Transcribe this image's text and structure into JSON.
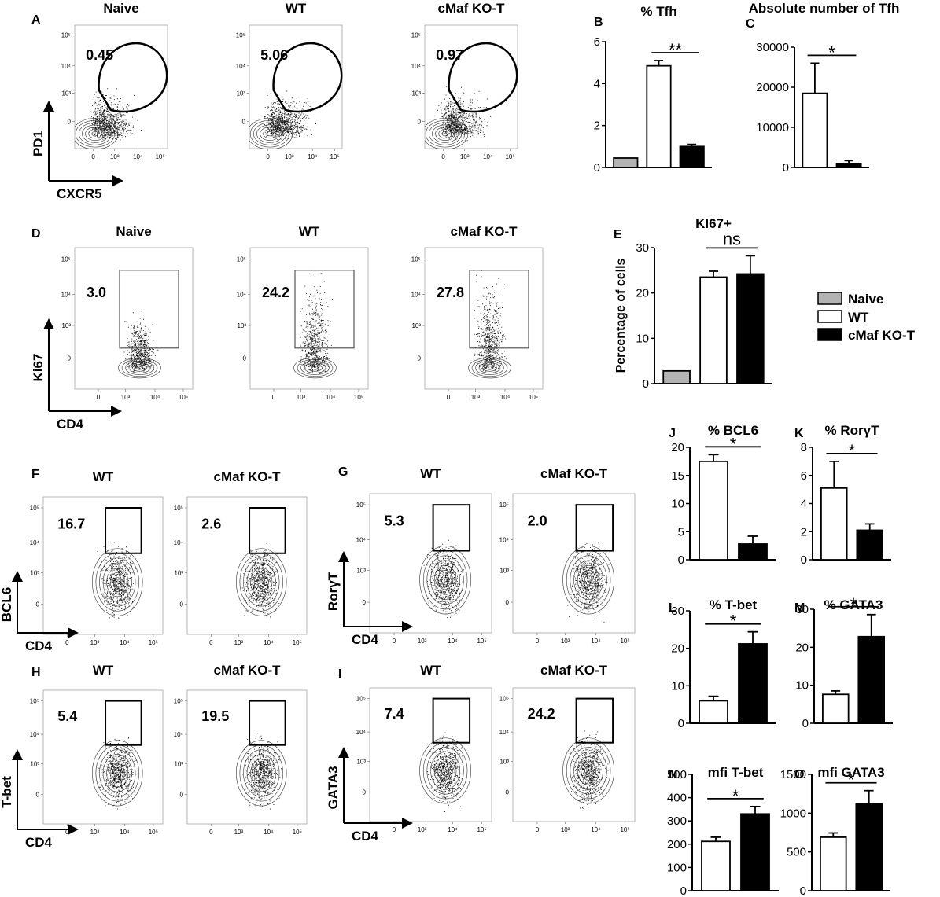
{
  "flow_rows": [
    {
      "id": "A",
      "y_label": "PD1",
      "x_label": "CXCR5",
      "gate": "oval",
      "cloud": "thin",
      "titles": [
        "Naive",
        "WT",
        "cMaf KO-T"
      ],
      "values": [
        "0.45",
        "5.06",
        "0.97"
      ]
    },
    {
      "id": "D",
      "y_label": "Ki67",
      "x_label": "CD4",
      "gate": "tall",
      "titles": [
        "Naive",
        "WT",
        "cMaf KO-T"
      ],
      "values": [
        "3.0",
        "24.2",
        "27.8"
      ]
    },
    {
      "id": "F",
      "y_label": "BCL6",
      "x_label": "CD4",
      "gate": "box",
      "titles": [
        "WT",
        "cMaf KO-T"
      ],
      "values": [
        "16.7",
        "2.6"
      ]
    },
    {
      "id": "G",
      "y_label": "RorγT",
      "x_label": "CD4",
      "gate": "box",
      "titles": [
        "WT",
        "cMaf KO-T"
      ],
      "values": [
        "5.3",
        "2.0"
      ]
    },
    {
      "id": "H",
      "y_label": "T-bet",
      "x_label": "CD4",
      "gate": "box",
      "titles": [
        "WT",
        "cMaf KO-T"
      ],
      "values": [
        "5.4",
        "19.5"
      ]
    },
    {
      "id": "I",
      "y_label": "GATA3",
      "x_label": "CD4",
      "gate": "box",
      "titles": [
        "WT",
        "cMaf KO-T"
      ],
      "values": [
        "7.4",
        "24.2"
      ]
    }
  ],
  "flow_axis_ticks": {
    "x": [
      "0",
      "10³",
      "10⁴",
      "10⁵"
    ],
    "y": [
      "0",
      "10³",
      "10⁴",
      "10⁵"
    ]
  },
  "chart_data": [
    {
      "id": "B",
      "type": "bar",
      "title": "% Tfh",
      "ylabel": "",
      "ylim": [
        0,
        6
      ],
      "yticks": [
        0,
        2,
        4,
        6
      ],
      "categories": [
        "Naive",
        "WT",
        "cMaf KO-T"
      ],
      "values": [
        0.45,
        4.85,
        1.0
      ],
      "errors": [
        0,
        0.25,
        0.1
      ],
      "significance": [
        {
          "between": [
            1,
            2
          ],
          "text": "**"
        }
      ]
    },
    {
      "id": "C",
      "type": "bar",
      "title": "Absolute number of Tfh",
      "ylabel": "",
      "ylim": [
        0,
        30000
      ],
      "yticks": [
        0,
        10000,
        20000,
        30000
      ],
      "categories": [
        "WT",
        "cMaf KO-T"
      ],
      "values": [
        18500,
        1000
      ],
      "errors": [
        7500,
        700
      ],
      "significance": [
        {
          "between": [
            0,
            1
          ],
          "text": "*"
        }
      ]
    },
    {
      "id": "E",
      "type": "bar",
      "title": "KI67+",
      "ylabel": "Percentage of cells",
      "ylim": [
        0,
        30
      ],
      "yticks": [
        0,
        10,
        20,
        30
      ],
      "categories": [
        "Naive",
        "WT",
        "cMaf KO-T"
      ],
      "values": [
        2.8,
        23.5,
        24.2
      ],
      "errors": [
        0,
        1.3,
        4.0
      ],
      "significance": [
        {
          "between": [
            1,
            2
          ],
          "text": "ns"
        }
      ]
    },
    {
      "id": "J",
      "type": "bar",
      "title": "% BCL6",
      "ylabel": "",
      "ylim": [
        0,
        20
      ],
      "yticks": [
        0,
        5,
        10,
        15,
        20
      ],
      "categories": [
        "WT",
        "cMaf KO-T"
      ],
      "values": [
        17.5,
        2.8
      ],
      "errors": [
        1.2,
        1.4
      ],
      "significance": [
        {
          "between": [
            0,
            1
          ],
          "text": "*"
        }
      ]
    },
    {
      "id": "K",
      "type": "bar",
      "title": "% RorγT",
      "ylabel": "",
      "ylim": [
        0,
        8
      ],
      "yticks": [
        0,
        2,
        4,
        6,
        8
      ],
      "categories": [
        "WT",
        "cMaf KO-T"
      ],
      "values": [
        5.1,
        2.1
      ],
      "errors": [
        1.9,
        0.45
      ],
      "significance": [
        {
          "between": [
            0,
            1
          ],
          "text": "*"
        }
      ]
    },
    {
      "id": "L",
      "type": "bar",
      "title": "% T-bet",
      "ylabel": "",
      "ylim": [
        0,
        30
      ],
      "yticks": [
        0,
        10,
        20,
        30
      ],
      "categories": [
        "WT",
        "cMaf KO-T"
      ],
      "values": [
        6.0,
        21.2
      ],
      "errors": [
        1.2,
        3.2
      ],
      "significance": [
        {
          "between": [
            0,
            1
          ],
          "text": "*"
        }
      ]
    },
    {
      "id": "M",
      "type": "bar",
      "title": "% GATA3",
      "ylabel": "",
      "ylim": [
        0,
        30
      ],
      "yticks": [
        0,
        10,
        20,
        30
      ],
      "categories": [
        "WT",
        "cMaf KO-T"
      ],
      "values": [
        7.6,
        22.8
      ],
      "errors": [
        0.9,
        5.8
      ],
      "significance": [
        {
          "between": [
            0,
            1
          ],
          "text": "*"
        }
      ]
    },
    {
      "id": "N",
      "type": "bar",
      "title": "mfi T-bet",
      "ylabel": "",
      "ylim": [
        0,
        500
      ],
      "yticks": [
        0,
        100,
        200,
        300,
        400,
        500
      ],
      "categories": [
        "WT",
        "cMaf KO-T"
      ],
      "values": [
        212,
        330
      ],
      "errors": [
        18,
        32
      ],
      "significance": [
        {
          "between": [
            0,
            1
          ],
          "text": "*"
        }
      ]
    },
    {
      "id": "O",
      "type": "bar",
      "title": "mfi GATA3",
      "ylabel": "",
      "ylim": [
        0,
        1500
      ],
      "yticks": [
        0,
        500,
        1000,
        1500
      ],
      "categories": [
        "WT",
        "cMaf KO-T"
      ],
      "values": [
        690,
        1120
      ],
      "errors": [
        55,
        170
      ],
      "significance": [
        {
          "between": [
            0,
            1
          ],
          "text": "*"
        }
      ]
    }
  ],
  "legend": {
    "items": [
      {
        "label": "Naive",
        "color": "#b3b3b3"
      },
      {
        "label": "WT",
        "color": "#ffffff"
      },
      {
        "label": "cMaf KO-T",
        "color": "#000000"
      }
    ]
  },
  "group_colors": {
    "Naive": "#b3b3b3",
    "WT": "#ffffff",
    "cMaf KO-T": "#000000"
  }
}
